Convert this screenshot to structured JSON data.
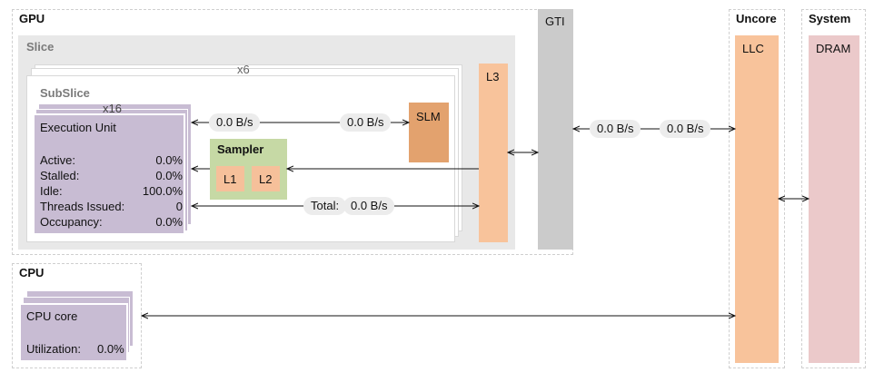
{
  "gpu": {
    "title": "GPU",
    "gti_label": "GTI",
    "slice": {
      "title": "Slice",
      "multiplier": "x6",
      "l3_label": "L3",
      "subslice": {
        "title": "SubSlice",
        "eu_multiplier": "x16",
        "execution_unit": {
          "title": "Execution Unit",
          "metrics": [
            {
              "label": "Active:",
              "value": "0.0%"
            },
            {
              "label": "Stalled:",
              "value": "0.0%"
            },
            {
              "label": "Idle:",
              "value": "100.0%"
            },
            {
              "label": "Threads Issued:",
              "value": "0"
            },
            {
              "label": "Occupancy:",
              "value": "0.0%"
            }
          ]
        },
        "slm_label": "SLM",
        "sampler": {
          "title": "Sampler",
          "l1_label": "L1",
          "l2_label": "L2"
        },
        "eu_slm_left": "0.0 B/s",
        "eu_slm_right": "0.0 B/s",
        "total_label": "Total:",
        "total_value": "0.0 B/s"
      }
    }
  },
  "gti_llc_left": "0.0 B/s",
  "gti_llc_right": "0.0 B/s",
  "uncore": {
    "title": "Uncore",
    "llc_label": "LLC"
  },
  "system": {
    "title": "System",
    "dram_label": "DRAM"
  },
  "cpu": {
    "title": "CPU",
    "core": {
      "title": "CPU core",
      "utilization_label": "Utilization:",
      "utilization_value": "0.0%"
    }
  },
  "colors": {
    "eu": "#c8bcd3",
    "l3_llc": "#f8c39b",
    "slm": "#e3a26e",
    "sampler": "#c6d9a5",
    "l1_l2": "#f6c09a",
    "gti": "#cbcbcb",
    "dram": "#ebc9ca",
    "slice_bg": "#e8e8e8"
  }
}
